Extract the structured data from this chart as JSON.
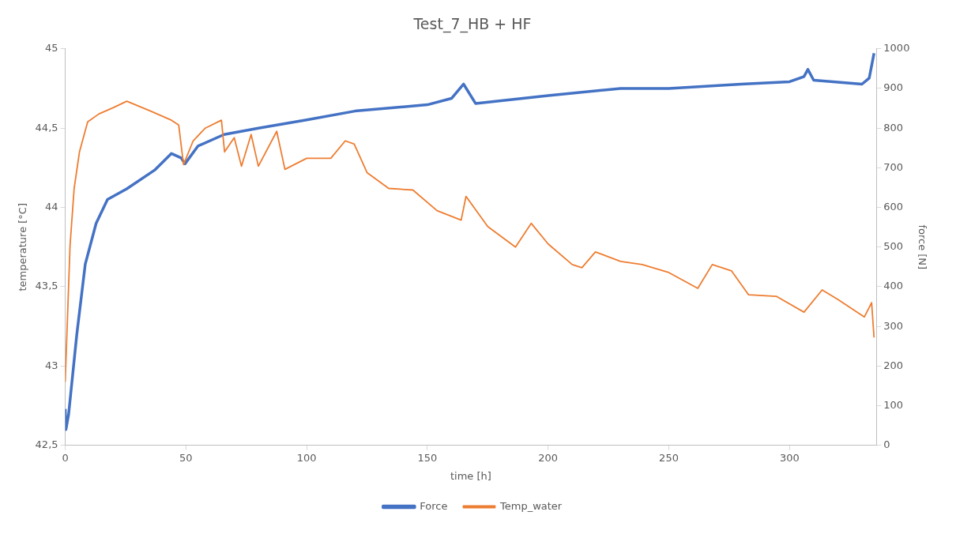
{
  "chart_data": {
    "type": "line",
    "title": "Test_7_HB + HF",
    "xlabel": "time [h]",
    "ylabel": "temperature [°C]",
    "y2label": "force [N]",
    "xlim": [
      0,
      336
    ],
    "xticks": [
      0,
      50,
      100,
      150,
      200,
      250,
      300
    ],
    "ylim": [
      42.5,
      45
    ],
    "yticks": [
      {
        "value": 42.5,
        "label": "42,5"
      },
      43,
      {
        "value": 43.5,
        "label": "43,5"
      },
      44,
      {
        "value": 44.5,
        "label": "44,5"
      },
      45
    ],
    "y2lim": [
      0,
      1000
    ],
    "y2ticks": [
      0,
      100,
      200,
      300,
      400,
      500,
      600,
      700,
      800,
      900,
      1000
    ],
    "legend": "bottom",
    "marker": "none",
    "line_style": "solid",
    "series": [
      {
        "name": "Force",
        "color": "#4472c4",
        "axis": "y2",
        "x": [
          0,
          0.3,
          1.4,
          4.8,
          8.3,
          12.8,
          17.5,
          25.5,
          37,
          44,
          48,
          49.6,
          55,
          65.8,
          80,
          100,
          120,
          150,
          160,
          165,
          170,
          200,
          230,
          250,
          280,
          300,
          306,
          307.6,
          310,
          330,
          333,
          335
        ],
        "values": [
          92,
          40,
          78,
          280,
          457,
          560,
          620,
          647,
          694,
          736,
          725,
          710,
          755,
          784,
          800,
          821,
          843,
          859,
          875,
          911,
          862,
          882,
          900,
          900,
          911,
          917,
          930,
          948,
          921,
          911,
          926,
          989
        ]
      },
      {
        "name": "Temp_water",
        "color": "#ed7d31",
        "x": [
          0,
          2,
          3.7,
          5.9,
          9.3,
          14,
          20,
          25.5,
          35,
          44,
          47,
          49,
          53,
          58,
          64.7,
          66,
          70,
          73,
          77,
          80,
          87.6,
          91,
          100,
          110,
          116,
          119.7,
          125,
          134,
          144,
          154,
          164,
          166,
          175,
          186.5,
          193,
          200,
          210,
          214,
          219.6,
          230,
          239,
          250,
          262,
          268,
          276,
          283,
          294.5,
          306,
          313.5,
          320,
          331,
          334,
          335
        ],
        "values": [
          42.9,
          43.76,
          44.12,
          44.35,
          44.54,
          44.59,
          44.63,
          44.67,
          44.61,
          44.55,
          44.52,
          44.27,
          44.42,
          44.5,
          44.55,
          44.35,
          44.44,
          44.26,
          44.46,
          44.26,
          44.48,
          44.24,
          44.31,
          44.31,
          44.42,
          44.4,
          44.22,
          44.12,
          44.11,
          43.98,
          43.92,
          44.07,
          43.88,
          43.75,
          43.9,
          43.77,
          43.64,
          43.62,
          43.72,
          43.66,
          43.64,
          43.59,
          43.49,
          43.64,
          43.6,
          43.45,
          43.44,
          43.34,
          43.48,
          43.42,
          43.31,
          43.4,
          43.18
        ]
      }
    ]
  }
}
